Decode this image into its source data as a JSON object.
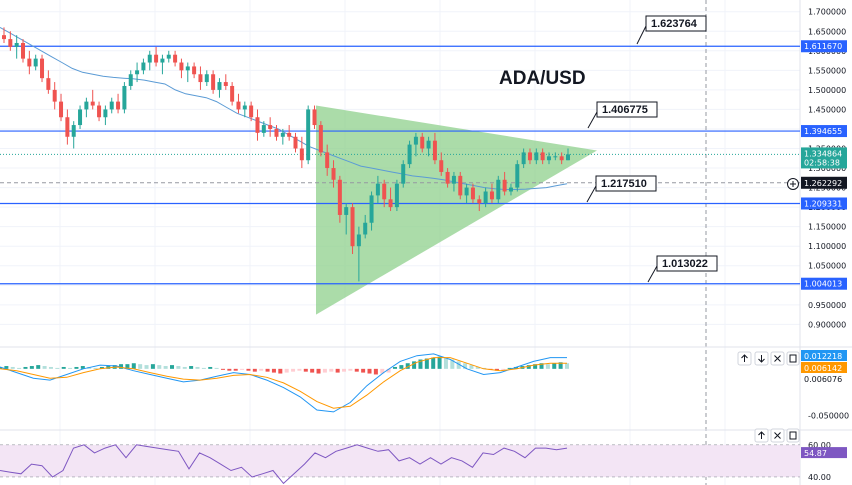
{
  "colors": {
    "up": "#26a69a",
    "down": "#ef5350",
    "level": "#2962ff",
    "triangle": "#8fd08c",
    "ma": "#5b9bd5",
    "macd_line": "#2196f3",
    "signal_line": "#ff9800",
    "rsi": "#7e57c2",
    "rsi_band": "#f3e5f5",
    "price_tag": "#131722",
    "orange_tag": "#ff9800"
  },
  "chart_data": [
    {
      "type": "candlestick",
      "title": "ADA/USD",
      "ylim": [
        0.86,
        1.73
      ],
      "y_ticks": [
        "1.700000",
        "1.650000",
        "1.600000",
        "1.550000",
        "1.500000",
        "1.450000",
        "1.400000",
        "1.350000",
        "1.300000",
        "1.250000",
        "1.200000",
        "1.150000",
        "1.100000",
        "1.050000",
        "1.000000",
        "0.950000",
        "0.900000"
      ],
      "horizontal_levels": [
        "1.611670",
        "1.394655",
        "1.209331",
        "1.004013"
      ],
      "callouts": [
        "1.623764",
        "1.406775",
        "1.217510",
        "1.013022"
      ],
      "price_tags": {
        "last": "1.334864",
        "countdown": "02:58:38",
        "crosshair": "1.262292"
      },
      "triangle": {
        "top": 1.46,
        "bottom": 0.925,
        "apex": 1.345
      },
      "candles": [
        [
          1.64,
          1.66,
          1.62,
          1.63
        ],
        [
          1.63,
          1.65,
          1.6,
          1.61
        ],
        [
          1.61,
          1.64,
          1.58,
          1.62
        ],
        [
          1.62,
          1.63,
          1.57,
          1.58
        ],
        [
          1.58,
          1.6,
          1.54,
          1.56
        ],
        [
          1.56,
          1.59,
          1.55,
          1.58
        ],
        [
          1.58,
          1.59,
          1.52,
          1.53
        ],
        [
          1.53,
          1.55,
          1.49,
          1.5
        ],
        [
          1.5,
          1.52,
          1.45,
          1.47
        ],
        [
          1.47,
          1.49,
          1.42,
          1.43
        ],
        [
          1.43,
          1.45,
          1.36,
          1.38
        ],
        [
          1.38,
          1.42,
          1.35,
          1.41
        ],
        [
          1.41,
          1.46,
          1.4,
          1.45
        ],
        [
          1.45,
          1.48,
          1.43,
          1.47
        ],
        [
          1.47,
          1.5,
          1.45,
          1.46
        ],
        [
          1.46,
          1.47,
          1.42,
          1.43
        ],
        [
          1.43,
          1.46,
          1.41,
          1.45
        ],
        [
          1.45,
          1.48,
          1.44,
          1.47
        ],
        [
          1.47,
          1.49,
          1.44,
          1.45
        ],
        [
          1.45,
          1.52,
          1.44,
          1.51
        ],
        [
          1.51,
          1.55,
          1.5,
          1.54
        ],
        [
          1.54,
          1.57,
          1.52,
          1.55
        ],
        [
          1.55,
          1.58,
          1.54,
          1.57
        ],
        [
          1.57,
          1.6,
          1.55,
          1.59
        ],
        [
          1.59,
          1.61,
          1.56,
          1.57
        ],
        [
          1.57,
          1.59,
          1.54,
          1.58
        ],
        [
          1.58,
          1.6,
          1.57,
          1.59
        ],
        [
          1.59,
          1.6,
          1.56,
          1.57
        ],
        [
          1.57,
          1.58,
          1.53,
          1.55
        ],
        [
          1.55,
          1.57,
          1.52,
          1.56
        ],
        [
          1.56,
          1.57,
          1.53,
          1.54
        ],
        [
          1.54,
          1.56,
          1.5,
          1.52
        ],
        [
          1.52,
          1.55,
          1.51,
          1.54
        ],
        [
          1.54,
          1.55,
          1.49,
          1.5
        ],
        [
          1.5,
          1.53,
          1.48,
          1.52
        ],
        [
          1.52,
          1.54,
          1.5,
          1.51
        ],
        [
          1.51,
          1.52,
          1.46,
          1.47
        ],
        [
          1.47,
          1.49,
          1.44,
          1.45
        ],
        [
          1.45,
          1.47,
          1.43,
          1.46
        ],
        [
          1.46,
          1.47,
          1.42,
          1.43
        ],
        [
          1.43,
          1.45,
          1.37,
          1.39
        ],
        [
          1.39,
          1.42,
          1.38,
          1.41
        ],
        [
          1.41,
          1.43,
          1.38,
          1.4
        ],
        [
          1.4,
          1.41,
          1.37,
          1.38
        ],
        [
          1.38,
          1.4,
          1.36,
          1.39
        ],
        [
          1.39,
          1.41,
          1.37,
          1.38
        ],
        [
          1.38,
          1.39,
          1.34,
          1.35
        ],
        [
          1.35,
          1.38,
          1.3,
          1.32
        ],
        [
          1.32,
          1.46,
          1.31,
          1.45
        ],
        [
          1.45,
          1.46,
          1.4,
          1.41
        ],
        [
          1.41,
          1.42,
          1.33,
          1.34
        ],
        [
          1.34,
          1.36,
          1.28,
          1.3
        ],
        [
          1.3,
          1.32,
          1.25,
          1.27
        ],
        [
          1.27,
          1.28,
          1.16,
          1.18
        ],
        [
          1.18,
          1.21,
          1.13,
          1.2
        ],
        [
          1.2,
          1.21,
          1.08,
          1.1
        ],
        [
          1.1,
          1.15,
          1.01,
          1.13
        ],
        [
          1.13,
          1.18,
          1.12,
          1.16
        ],
        [
          1.16,
          1.24,
          1.14,
          1.23
        ],
        [
          1.23,
          1.28,
          1.21,
          1.26
        ],
        [
          1.26,
          1.27,
          1.2,
          1.22
        ],
        [
          1.22,
          1.25,
          1.19,
          1.2
        ],
        [
          1.2,
          1.27,
          1.19,
          1.26
        ],
        [
          1.26,
          1.32,
          1.25,
          1.31
        ],
        [
          1.31,
          1.37,
          1.3,
          1.36
        ],
        [
          1.36,
          1.39,
          1.33,
          1.38
        ],
        [
          1.38,
          1.39,
          1.34,
          1.35
        ],
        [
          1.35,
          1.38,
          1.33,
          1.37
        ],
        [
          1.37,
          1.39,
          1.31,
          1.32
        ],
        [
          1.32,
          1.34,
          1.28,
          1.29
        ],
        [
          1.29,
          1.3,
          1.25,
          1.26
        ],
        [
          1.26,
          1.29,
          1.24,
          1.28
        ],
        [
          1.28,
          1.29,
          1.22,
          1.23
        ],
        [
          1.23,
          1.26,
          1.21,
          1.25
        ],
        [
          1.25,
          1.26,
          1.21,
          1.22
        ],
        [
          1.22,
          1.23,
          1.19,
          1.21
        ],
        [
          1.21,
          1.25,
          1.2,
          1.24
        ],
        [
          1.24,
          1.26,
          1.21,
          1.22
        ],
        [
          1.22,
          1.28,
          1.21,
          1.27
        ],
        [
          1.27,
          1.29,
          1.23,
          1.24
        ],
        [
          1.24,
          1.26,
          1.23,
          1.25
        ],
        [
          1.25,
          1.32,
          1.24,
          1.31
        ],
        [
          1.31,
          1.35,
          1.3,
          1.34
        ],
        [
          1.34,
          1.35,
          1.31,
          1.32
        ],
        [
          1.32,
          1.35,
          1.31,
          1.34
        ],
        [
          1.34,
          1.35,
          1.31,
          1.32
        ],
        [
          1.32,
          1.34,
          1.31,
          1.33
        ],
        [
          1.33,
          1.34,
          1.32,
          1.33
        ],
        [
          1.33,
          1.34,
          1.31,
          1.32
        ],
        [
          1.32,
          1.35,
          1.32,
          1.335
        ]
      ],
      "ma": [
        1.66,
        1.645,
        1.63,
        1.615,
        1.6,
        1.585,
        1.57,
        1.555,
        1.545,
        1.54,
        1.535,
        1.532,
        1.53,
        1.528,
        1.525,
        1.52,
        1.515,
        1.5,
        1.49,
        1.485,
        1.48,
        1.47,
        1.455,
        1.44,
        1.43,
        1.42,
        1.41,
        1.4,
        1.385,
        1.37,
        1.355,
        1.345,
        1.335,
        1.325,
        1.315,
        1.305,
        1.3,
        1.295,
        1.29,
        1.285,
        1.28,
        1.277,
        1.274,
        1.27,
        1.265,
        1.26,
        1.255,
        1.25,
        1.247,
        1.245,
        1.245,
        1.246,
        1.248,
        1.25,
        1.255,
        1.26
      ]
    },
    {
      "type": "bar",
      "series": [
        {
          "name": "Histogram",
          "values": [
            0.002,
            0.003,
            0.002,
            0.001,
            0.002,
            0.003,
            0.004,
            0.003,
            0.002,
            0.001,
            0.002,
            0.001,
            0.002,
            0.003,
            0.002,
            0.001,
            0.002,
            0.003,
            0.004,
            0.005,
            0.005,
            0.006,
            0.005,
            0.004,
            0.005,
            0.004,
            0.003,
            0.004,
            0.003,
            0.002,
            0.003,
            0.002,
            0.001,
            0.002,
            0.001,
            -0.001,
            -0.002,
            -0.002,
            -0.001,
            -0.002,
            -0.003,
            -0.002,
            -0.003,
            -0.004,
            -0.005,
            -0.004,
            -0.003,
            -0.002,
            -0.003,
            -0.004,
            -0.005,
            -0.004,
            -0.003,
            -0.004,
            -0.003,
            -0.002,
            -0.003,
            -0.004,
            -0.005,
            -0.006,
            -0.005,
            -0.004,
            0.002,
            0.004,
            0.006,
            0.008,
            0.01,
            0.011,
            0.012,
            0.013,
            0.012,
            0.01,
            0.008,
            0.006,
            0.004,
            0.002,
            0.001,
            -0.001,
            -0.002,
            -0.001,
            0.001,
            0.002,
            0.003,
            0.004,
            0.005,
            0.006,
            0.005,
            0.006,
            0.007,
            0.006
          ]
        },
        {
          "name": "MACD",
          "values": [
            0.002,
            -0.004,
            -0.01,
            -0.012,
            -0.006,
            0.0,
            0.004,
            0.003,
            -0.002,
            -0.006,
            -0.01,
            -0.014,
            -0.012,
            -0.008,
            -0.004,
            -0.006,
            -0.012,
            -0.02,
            -0.03,
            -0.044,
            -0.046,
            -0.036,
            -0.018,
            -0.004,
            0.008,
            0.014,
            0.016,
            0.01,
            0.0,
            -0.006,
            -0.004,
            0.002,
            0.008,
            0.012,
            0.012
          ]
        },
        {
          "name": "Signal",
          "values": [
            0.0,
            -0.002,
            -0.006,
            -0.01,
            -0.009,
            -0.004,
            0.0,
            0.002,
            0.0,
            -0.004,
            -0.008,
            -0.011,
            -0.012,
            -0.01,
            -0.007,
            -0.006,
            -0.009,
            -0.015,
            -0.024,
            -0.035,
            -0.042,
            -0.04,
            -0.028,
            -0.014,
            -0.002,
            0.007,
            0.012,
            0.012,
            0.006,
            0.0,
            -0.002,
            0.0,
            0.004,
            0.006,
            0.006
          ]
        }
      ],
      "y_ticks": [
        "0.012218",
        "0.006142",
        "0.006076",
        "-0.050000"
      ],
      "ylim": [
        -0.06,
        0.018
      ]
    },
    {
      "type": "line",
      "series": [
        {
          "name": "RSI",
          "values": [
            44,
            43,
            42,
            48,
            47,
            40,
            44,
            58,
            60,
            55,
            58,
            60,
            52,
            60,
            59,
            58,
            57,
            56,
            45,
            55,
            52,
            48,
            44,
            46,
            40,
            42,
            44,
            36,
            42,
            48,
            55,
            52,
            56,
            58,
            60,
            58,
            56,
            57,
            50,
            52,
            48,
            52,
            48,
            52,
            50,
            46,
            55,
            54,
            58,
            56,
            52,
            58,
            58,
            57,
            58
          ]
        }
      ],
      "y_ticks": [
        "60.00",
        "54.87",
        "40.00"
      ],
      "ylim": [
        35,
        68
      ]
    }
  ]
}
